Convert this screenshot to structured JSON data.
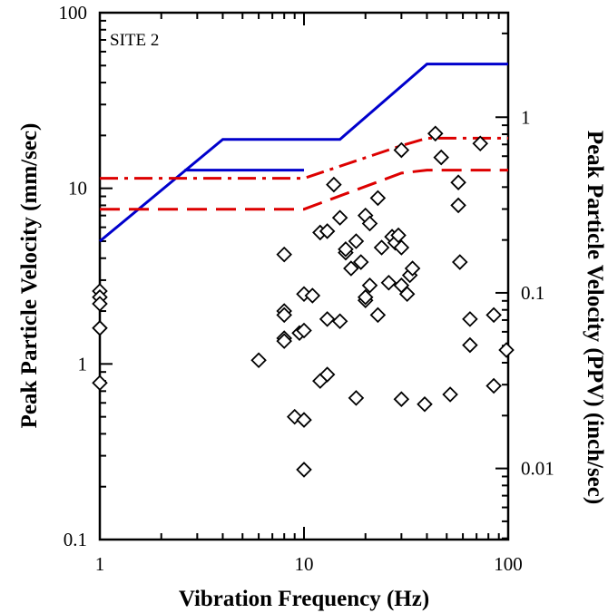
{
  "chart_data": {
    "type": "scatter",
    "x_scale": "log",
    "y_scale": "log",
    "xlim": [
      1,
      100
    ],
    "ylim": [
      0.1,
      100
    ],
    "y2_scale": "log",
    "y2_unit_factor": 0.03937,
    "annotation": "SITE 2",
    "xlabel": "Vibration Frequency (Hz)",
    "ylabel": "Peak Particle Velocity (mm/sec)",
    "y2label": "Peak Particle Velocity (PPV) (inch/sec)",
    "x_ticks": [
      "1",
      "10",
      "100"
    ],
    "y_ticks": [
      "0.1",
      "1",
      "10",
      "100"
    ],
    "y2_ticks": [
      "0.01",
      "0.1",
      "1"
    ],
    "grid": false,
    "limit_lines": [
      {
        "style": "solid",
        "color": "#0000cc",
        "points": [
          [
            1,
            5.0
          ],
          [
            4,
            19.0
          ],
          [
            15,
            19.0
          ],
          [
            40,
            51.0
          ],
          [
            100,
            51.0
          ]
        ]
      },
      {
        "style": "solid",
        "color": "#0000cc",
        "points": [
          [
            2.6,
            12.7
          ],
          [
            10,
            12.7
          ]
        ]
      },
      {
        "style": "dash-dot",
        "color": "#dd0000",
        "points": [
          [
            1,
            11.4
          ],
          [
            10,
            11.4
          ],
          [
            30,
            17.5
          ],
          [
            40,
            19.3
          ],
          [
            100,
            19.3
          ]
        ]
      },
      {
        "style": "dashed",
        "color": "#dd0000",
        "points": [
          [
            1,
            7.6
          ],
          [
            10,
            7.6
          ],
          [
            30,
            12.2
          ],
          [
            40,
            12.7
          ],
          [
            100,
            12.7
          ]
        ]
      }
    ],
    "points": [
      [
        1,
        2.6
      ],
      [
        1,
        2.4
      ],
      [
        1,
        2.2
      ],
      [
        1,
        1.6
      ],
      [
        1,
        0.78
      ],
      [
        6,
        1.05
      ],
      [
        8,
        4.2
      ],
      [
        8,
        2.0
      ],
      [
        8,
        1.9
      ],
      [
        8,
        1.4
      ],
      [
        8,
        1.35
      ],
      [
        9,
        0.5
      ],
      [
        9.5,
        1.5
      ],
      [
        10,
        1.55
      ],
      [
        10,
        2.5
      ],
      [
        10,
        0.48
      ],
      [
        10,
        0.25
      ],
      [
        11,
        2.45
      ],
      [
        12,
        5.6
      ],
      [
        12,
        0.8
      ],
      [
        13,
        5.7
      ],
      [
        13,
        1.8
      ],
      [
        13,
        0.87
      ],
      [
        14,
        10.5
      ],
      [
        15,
        6.8
      ],
      [
        15,
        1.75
      ],
      [
        16,
        4.3
      ],
      [
        16,
        4.5
      ],
      [
        17,
        3.5
      ],
      [
        18,
        5.0
      ],
      [
        18,
        0.64
      ],
      [
        19,
        3.8
      ],
      [
        20,
        7.0
      ],
      [
        20,
        2.3
      ],
      [
        20,
        2.4
      ],
      [
        21,
        6.3
      ],
      [
        21,
        2.8
      ],
      [
        23,
        8.8
      ],
      [
        23,
        1.9
      ],
      [
        24,
        4.6
      ],
      [
        26,
        2.9
      ],
      [
        27,
        5.3
      ],
      [
        28,
        4.9
      ],
      [
        29,
        5.4
      ],
      [
        30,
        4.6
      ],
      [
        30,
        2.8
      ],
      [
        30,
        16.5
      ],
      [
        30,
        0.63
      ],
      [
        32,
        2.5
      ],
      [
        33,
        3.2
      ],
      [
        34,
        3.5
      ],
      [
        39,
        0.59
      ],
      [
        44,
        20.5
      ],
      [
        47,
        15.0
      ],
      [
        52,
        0.67
      ],
      [
        57,
        10.8
      ],
      [
        57,
        8.0
      ],
      [
        58,
        3.8
      ],
      [
        65,
        1.8
      ],
      [
        65,
        1.28
      ],
      [
        73,
        18.0
      ],
      [
        85,
        1.9
      ],
      [
        85,
        0.75
      ],
      [
        98,
        1.2
      ]
    ]
  }
}
